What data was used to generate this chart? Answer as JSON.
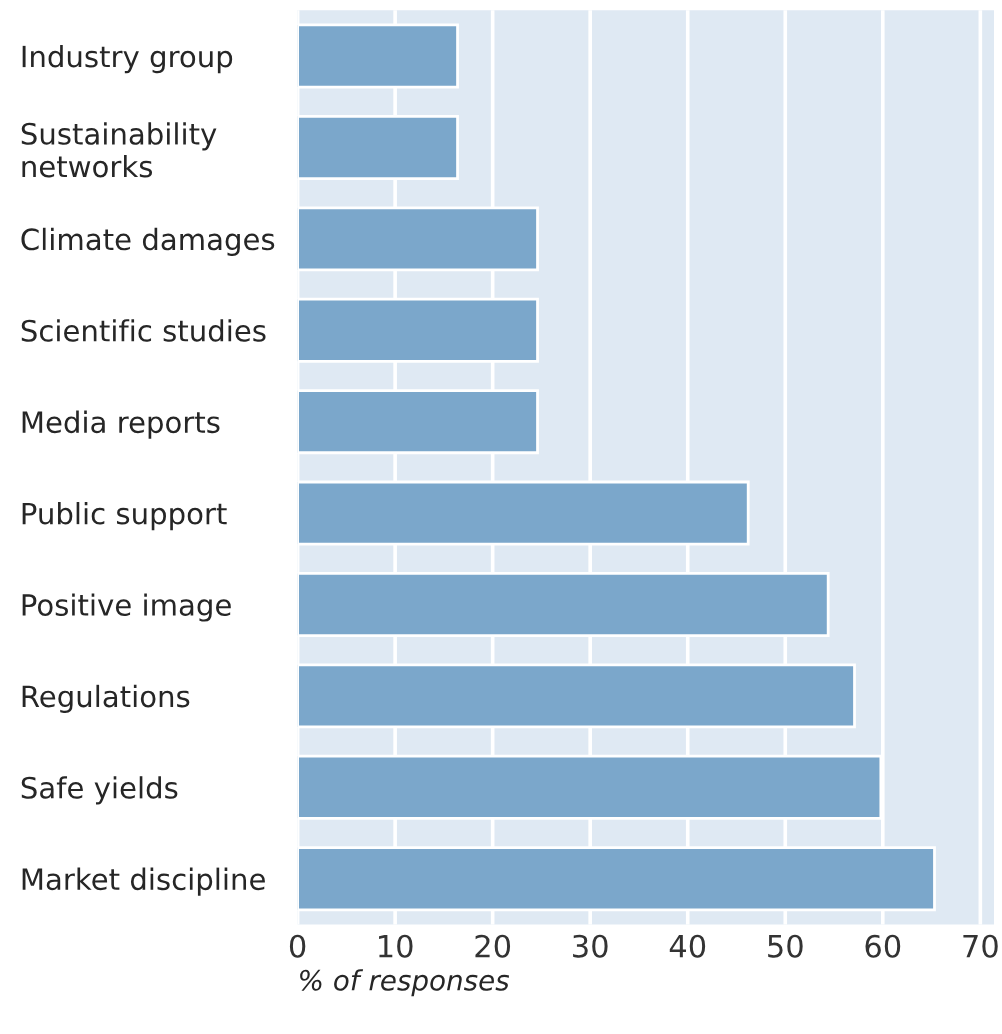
{
  "chart_data": {
    "type": "bar",
    "orientation": "horizontal",
    "xlabel": "% of responses",
    "categories": [
      "Industry group",
      "Sustainability\nnetworks",
      "Climate damages",
      "Scientific studies",
      "Media reports",
      "Public support",
      "Positive image",
      "Regulations",
      "Safe yields",
      "Market discipline"
    ],
    "values": [
      16.4,
      16.4,
      24.6,
      24.6,
      24.6,
      46.2,
      54.4,
      57.1,
      59.8,
      65.3
    ],
    "color": "#7ba7cb",
    "xlim": [
      0,
      71.4
    ],
    "xticks": [
      0,
      10,
      20,
      30,
      40,
      50,
      60,
      70
    ],
    "grid": "x",
    "legend": false
  }
}
